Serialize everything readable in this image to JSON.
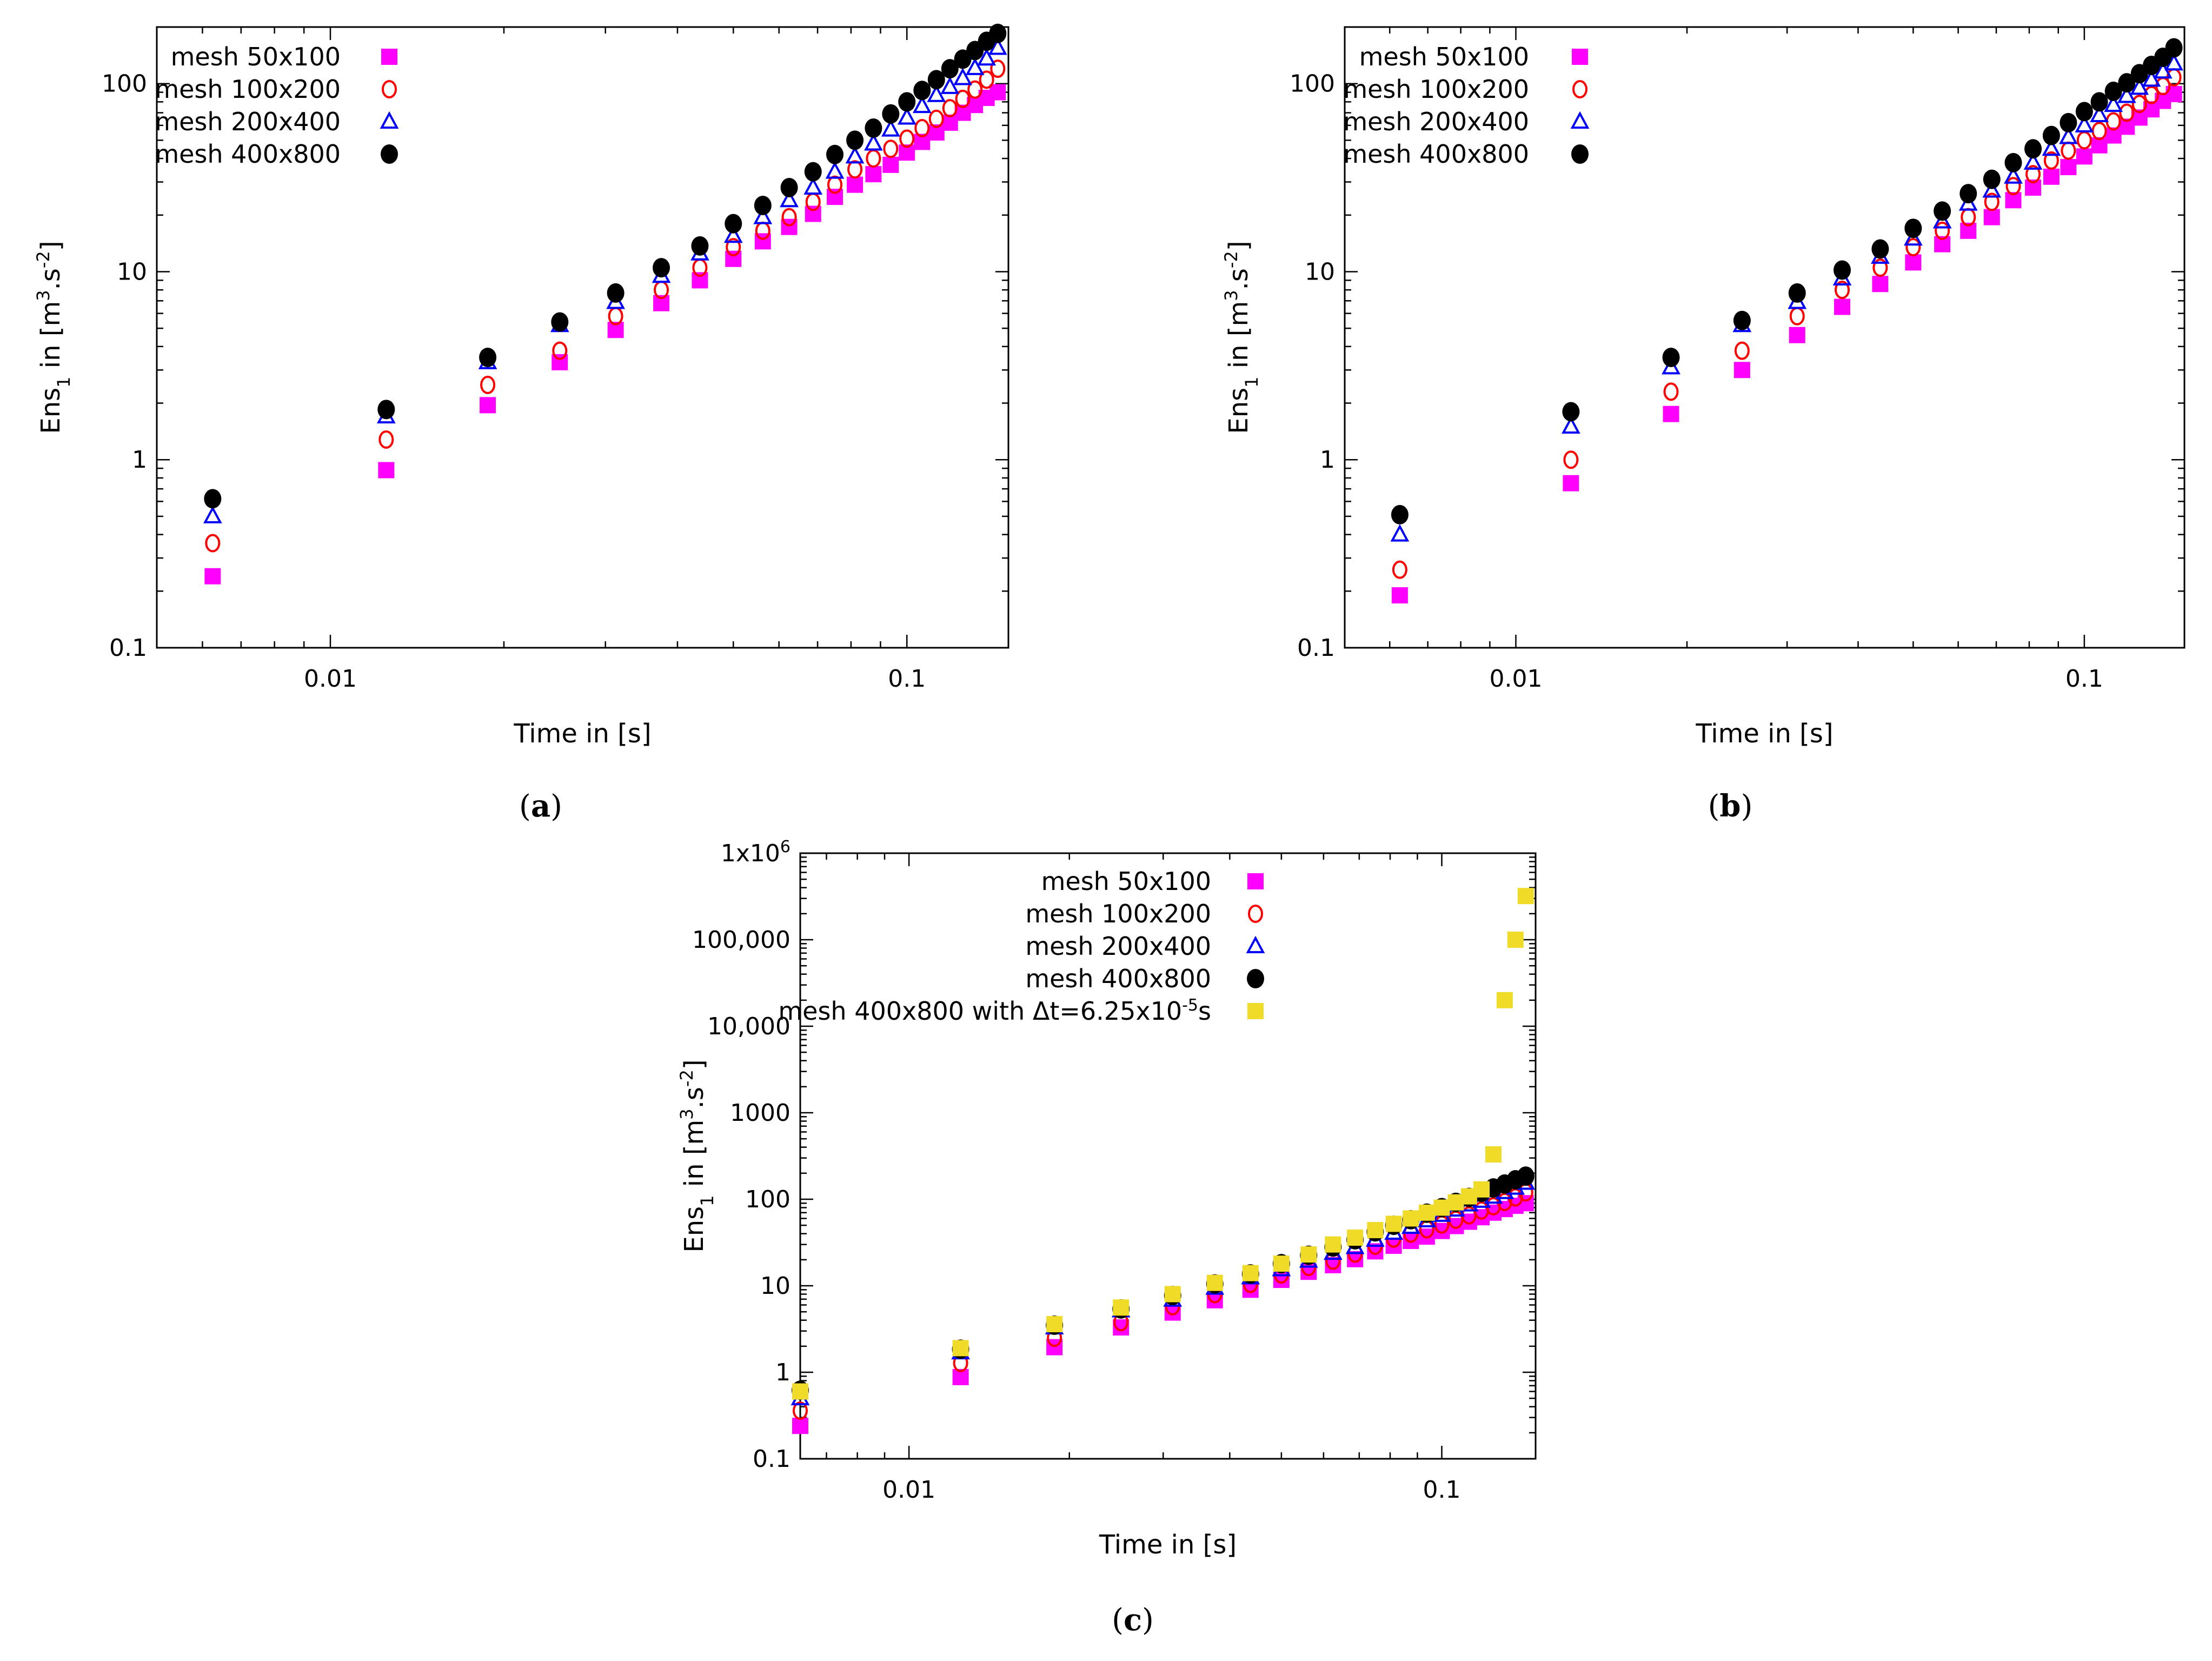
{
  "colors": {
    "mesh_50x100": "#ff00ff",
    "mesh_100x200": "#ff0000",
    "mesh_200x400": "#0000ff",
    "mesh_400x800": "#000000",
    "mesh_400x800_dt": "#f0dc28"
  },
  "chart_data": [
    {
      "type": "scatter",
      "panel": "a",
      "caption_letter": "a",
      "caption": "(a)",
      "xlabel": "Time in [s]",
      "ylabel": "Ens1 in [m3.s-2]",
      "ylabel_parts": {
        "main": "Ens",
        "sub": "1",
        "in": " in [m",
        "sup1": "3",
        "mid": ".s",
        "sup2": "-2",
        "end": "]"
      },
      "xscale": "log",
      "yscale": "log",
      "xlim": [
        0.005,
        0.15
      ],
      "ylim": [
        0.1,
        200
      ],
      "xticks": [
        {
          "v": 0.01,
          "label": "0.01"
        },
        {
          "v": 0.1,
          "label": "0.1"
        }
      ],
      "yticks": [
        {
          "v": 0.1,
          "label": "0.1"
        },
        {
          "v": 1,
          "label": "1"
        },
        {
          "v": 10,
          "label": "10"
        },
        {
          "v": 100,
          "label": "100"
        }
      ],
      "legend_position": "top-left",
      "series": [
        {
          "name": "mesh 50x100",
          "marker": "square",
          "color_key": "mesh_50x100",
          "x": [
            0.00625,
            0.0125,
            0.01875,
            0.025,
            0.03125,
            0.0375,
            0.04375,
            0.05,
            0.05625,
            0.0625,
            0.06875,
            0.075,
            0.08125,
            0.0875,
            0.09375,
            0.1,
            0.10625,
            0.1125,
            0.11875,
            0.125,
            0.13125,
            0.1375,
            0.14375
          ],
          "y": [
            0.24,
            0.88,
            1.95,
            3.3,
            4.9,
            6.8,
            9.0,
            11.7,
            14.5,
            17.3,
            20.3,
            25,
            29,
            33,
            37,
            43,
            49,
            55,
            62,
            70,
            77,
            84,
            90
          ]
        },
        {
          "name": "mesh 100x200",
          "marker": "circle-open",
          "color_key": "mesh_100x200",
          "x": [
            0.00625,
            0.0125,
            0.01875,
            0.025,
            0.03125,
            0.0375,
            0.04375,
            0.05,
            0.05625,
            0.0625,
            0.06875,
            0.075,
            0.08125,
            0.0875,
            0.09375,
            0.1,
            0.10625,
            0.1125,
            0.11875,
            0.125,
            0.13125,
            0.1375,
            0.14375
          ],
          "y": [
            0.36,
            1.28,
            2.5,
            3.8,
            5.8,
            8.0,
            10.5,
            13.5,
            16.5,
            19.5,
            23.5,
            29,
            35,
            40,
            45,
            51,
            58,
            65,
            74,
            83,
            93,
            105,
            120
          ]
        },
        {
          "name": "mesh 200x400",
          "marker": "triangle-open",
          "color_key": "mesh_200x400",
          "x": [
            0.00625,
            0.0125,
            0.01875,
            0.025,
            0.03125,
            0.0375,
            0.04375,
            0.05,
            0.05625,
            0.0625,
            0.06875,
            0.075,
            0.08125,
            0.0875,
            0.09375,
            0.1,
            0.10625,
            0.1125,
            0.11875,
            0.125,
            0.13125,
            0.1375,
            0.14375
          ],
          "y": [
            0.5,
            1.7,
            3.3,
            5.2,
            6.9,
            9.5,
            12.5,
            15.5,
            19.5,
            24,
            28,
            34,
            41,
            48,
            57,
            66,
            76,
            87,
            96,
            107,
            121,
            136,
            155
          ]
        },
        {
          "name": "mesh 400x800",
          "marker": "circle-filled",
          "color_key": "mesh_400x800",
          "x": [
            0.00625,
            0.0125,
            0.01875,
            0.025,
            0.03125,
            0.0375,
            0.04375,
            0.05,
            0.05625,
            0.0625,
            0.06875,
            0.075,
            0.08125,
            0.0875,
            0.09375,
            0.1,
            0.10625,
            0.1125,
            0.11875,
            0.125,
            0.13125,
            0.1375,
            0.14375
          ],
          "y": [
            0.62,
            1.85,
            3.5,
            5.4,
            7.7,
            10.5,
            13.7,
            18,
            22.5,
            28,
            34,
            42,
            50,
            58,
            69,
            80,
            92,
            105,
            120,
            135,
            150,
            168,
            185
          ]
        }
      ]
    },
    {
      "type": "scatter",
      "panel": "b",
      "caption_letter": "b",
      "caption": "(b)",
      "xlabel": "Time in [s]",
      "ylabel": "Ens1 in [m3.s-2]",
      "ylabel_parts": {
        "main": "Ens",
        "sub": "1",
        "in": " in [m",
        "sup1": "3",
        "mid": ".s",
        "sup2": "-2",
        "end": "]"
      },
      "xscale": "log",
      "yscale": "log",
      "xlim": [
        0.005,
        0.15
      ],
      "ylim": [
        0.1,
        200
      ],
      "xticks": [
        {
          "v": 0.01,
          "label": "0.01"
        },
        {
          "v": 0.1,
          "label": "0.1"
        }
      ],
      "yticks": [
        {
          "v": 0.1,
          "label": "0.1"
        },
        {
          "v": 1,
          "label": "1"
        },
        {
          "v": 10,
          "label": "10"
        },
        {
          "v": 100,
          "label": "100"
        }
      ],
      "legend_position": "top-left",
      "series": [
        {
          "name": "mesh 50x100",
          "marker": "square",
          "color_key": "mesh_50x100",
          "x": [
            0.00625,
            0.0125,
            0.01875,
            0.025,
            0.03125,
            0.0375,
            0.04375,
            0.05,
            0.05625,
            0.0625,
            0.06875,
            0.075,
            0.08125,
            0.0875,
            0.09375,
            0.1,
            0.10625,
            0.1125,
            0.11875,
            0.125,
            0.13125,
            0.1375,
            0.14375
          ],
          "y": [
            0.19,
            0.75,
            1.75,
            3.0,
            4.6,
            6.5,
            8.6,
            11.2,
            14,
            16.5,
            19.5,
            24,
            28,
            32,
            36,
            41,
            47,
            53,
            59,
            66,
            73,
            81,
            88
          ]
        },
        {
          "name": "mesh 100x200",
          "marker": "circle-open",
          "color_key": "mesh_100x200",
          "x": [
            0.00625,
            0.0125,
            0.01875,
            0.025,
            0.03125,
            0.0375,
            0.04375,
            0.05,
            0.05625,
            0.0625,
            0.06875,
            0.075,
            0.08125,
            0.0875,
            0.09375,
            0.1,
            0.10625,
            0.1125,
            0.11875,
            0.125,
            0.13125,
            0.1375,
            0.14375
          ],
          "y": [
            0.26,
            1.0,
            2.3,
            3.8,
            5.8,
            8.0,
            10.5,
            13.5,
            16.5,
            19.5,
            23.5,
            28.5,
            33,
            39,
            44,
            50,
            56,
            63,
            70,
            78,
            87,
            97,
            108
          ]
        },
        {
          "name": "mesh 200x400",
          "marker": "triangle-open",
          "color_key": "mesh_200x400",
          "x": [
            0.00625,
            0.0125,
            0.01875,
            0.025,
            0.03125,
            0.0375,
            0.04375,
            0.05,
            0.05625,
            0.0625,
            0.06875,
            0.075,
            0.08125,
            0.0875,
            0.09375,
            0.1,
            0.10625,
            0.1125,
            0.11875,
            0.125,
            0.13125,
            0.1375,
            0.14375
          ],
          "y": [
            0.4,
            1.5,
            3.1,
            5.2,
            6.9,
            9.2,
            12,
            15,
            18.5,
            23,
            27,
            32,
            38,
            45,
            52,
            60,
            68,
            77,
            86,
            95,
            105,
            116,
            128
          ]
        },
        {
          "name": "mesh 400x800",
          "marker": "circle-filled",
          "color_key": "mesh_400x800",
          "x": [
            0.00625,
            0.0125,
            0.01875,
            0.025,
            0.03125,
            0.0375,
            0.04375,
            0.05,
            0.05625,
            0.0625,
            0.06875,
            0.075,
            0.08125,
            0.0875,
            0.09375,
            0.1,
            0.10625,
            0.1125,
            0.11875,
            0.125,
            0.13125,
            0.1375,
            0.14375
          ],
          "y": [
            0.51,
            1.8,
            3.5,
            5.5,
            7.7,
            10.2,
            13.2,
            17,
            21,
            26,
            31,
            38,
            45,
            53,
            62,
            71,
            80,
            91,
            101,
            113,
            125,
            138,
            155
          ]
        }
      ]
    },
    {
      "type": "scatter",
      "panel": "c",
      "caption_letter": "c",
      "caption": "(c)",
      "xlabel": "Time in [s]",
      "ylabel": "Ens1 in [m3.s-2]",
      "ylabel_parts": {
        "main": "Ens",
        "sub": "1",
        "in": " in [m",
        "sup1": "3",
        "mid": ".s",
        "sup2": "-2",
        "end": "]"
      },
      "xscale": "log",
      "yscale": "log",
      "xlim": [
        0.00625,
        0.15
      ],
      "ylim": [
        0.1,
        1000000
      ],
      "xticks": [
        {
          "v": 0.01,
          "label": "0.01"
        },
        {
          "v": 0.1,
          "label": "0.1"
        }
      ],
      "yticks": [
        {
          "v": 0.1,
          "label": "0.1"
        },
        {
          "v": 1,
          "label": "1"
        },
        {
          "v": 10,
          "label": "10"
        },
        {
          "v": 100,
          "label": "100"
        },
        {
          "v": 1000,
          "label": "1000"
        },
        {
          "v": 10000,
          "label": "10,000"
        },
        {
          "v": 100000,
          "label": "100,000"
        },
        {
          "v": 1000000,
          "label": "1x10",
          "sup": "6"
        }
      ],
      "legend_position": "top-right",
      "series": [
        {
          "name": "mesh 50x100",
          "marker": "square",
          "color_key": "mesh_50x100",
          "x": [
            0.00625,
            0.0125,
            0.01875,
            0.025,
            0.03125,
            0.0375,
            0.04375,
            0.05,
            0.05625,
            0.0625,
            0.06875,
            0.075,
            0.08125,
            0.0875,
            0.09375,
            0.1,
            0.10625,
            0.1125,
            0.11875,
            0.125,
            0.13125,
            0.1375,
            0.14375
          ],
          "y": [
            0.24,
            0.88,
            1.95,
            3.3,
            4.9,
            6.8,
            9.0,
            11.7,
            14.5,
            17.3,
            20.3,
            25,
            29,
            33,
            37,
            43,
            49,
            55,
            62,
            70,
            77,
            84,
            90
          ]
        },
        {
          "name": "mesh 100x200",
          "marker": "circle-open",
          "color_key": "mesh_100x200",
          "x": [
            0.00625,
            0.0125,
            0.01875,
            0.025,
            0.03125,
            0.0375,
            0.04375,
            0.05,
            0.05625,
            0.0625,
            0.06875,
            0.075,
            0.08125,
            0.0875,
            0.09375,
            0.1,
            0.10625,
            0.1125,
            0.11875,
            0.125,
            0.13125,
            0.1375,
            0.14375
          ],
          "y": [
            0.36,
            1.28,
            2.5,
            3.8,
            5.8,
            8.0,
            10.5,
            13.5,
            16.5,
            19.5,
            23.5,
            29,
            35,
            40,
            45,
            51,
            58,
            65,
            74,
            83,
            93,
            105,
            120
          ]
        },
        {
          "name": "mesh 200x400",
          "marker": "triangle-open",
          "color_key": "mesh_200x400",
          "x": [
            0.00625,
            0.0125,
            0.01875,
            0.025,
            0.03125,
            0.0375,
            0.04375,
            0.05,
            0.05625,
            0.0625,
            0.06875,
            0.075,
            0.08125,
            0.0875,
            0.09375,
            0.1,
            0.10625,
            0.1125,
            0.11875,
            0.125,
            0.13125,
            0.1375,
            0.14375
          ],
          "y": [
            0.5,
            1.7,
            3.3,
            5.2,
            6.9,
            9.5,
            12.5,
            15.5,
            19.5,
            24,
            28,
            34,
            41,
            48,
            57,
            66,
            76,
            87,
            96,
            107,
            121,
            136,
            155
          ]
        },
        {
          "name": "mesh 400x800",
          "marker": "circle-filled",
          "color_key": "mesh_400x800",
          "x": [
            0.00625,
            0.0125,
            0.01875,
            0.025,
            0.03125,
            0.0375,
            0.04375,
            0.05,
            0.05625,
            0.0625,
            0.06875,
            0.075,
            0.08125,
            0.0875,
            0.09375,
            0.1,
            0.10625,
            0.1125,
            0.11875,
            0.125,
            0.13125,
            0.1375,
            0.14375
          ],
          "y": [
            0.62,
            1.85,
            3.5,
            5.4,
            7.7,
            10.5,
            13.7,
            18,
            22.5,
            28,
            34,
            42,
            50,
            58,
            69,
            80,
            92,
            105,
            120,
            135,
            150,
            168,
            185
          ]
        },
        {
          "name": "mesh 400x800 with Δt=6.25x10-5s",
          "label_parts": {
            "main": "mesh 400x800 with Δt=6.25x10",
            "sup": "-5",
            "end": "s"
          },
          "marker": "square",
          "color_key": "mesh_400x800_dt",
          "x": [
            0.00625,
            0.0125,
            0.01875,
            0.025,
            0.03125,
            0.0375,
            0.04375,
            0.05,
            0.05625,
            0.0625,
            0.06875,
            0.075,
            0.08125,
            0.0875,
            0.09375,
            0.1,
            0.10625,
            0.1125,
            0.11875,
            0.125,
            0.13125,
            0.1375,
            0.14375
          ],
          "y": [
            0.6,
            1.9,
            3.6,
            5.6,
            8.0,
            10.8,
            14,
            18,
            23,
            30,
            36,
            44,
            52,
            60,
            70,
            80,
            92,
            108,
            130,
            330,
            20000,
            100000,
            320000
          ]
        }
      ]
    }
  ]
}
